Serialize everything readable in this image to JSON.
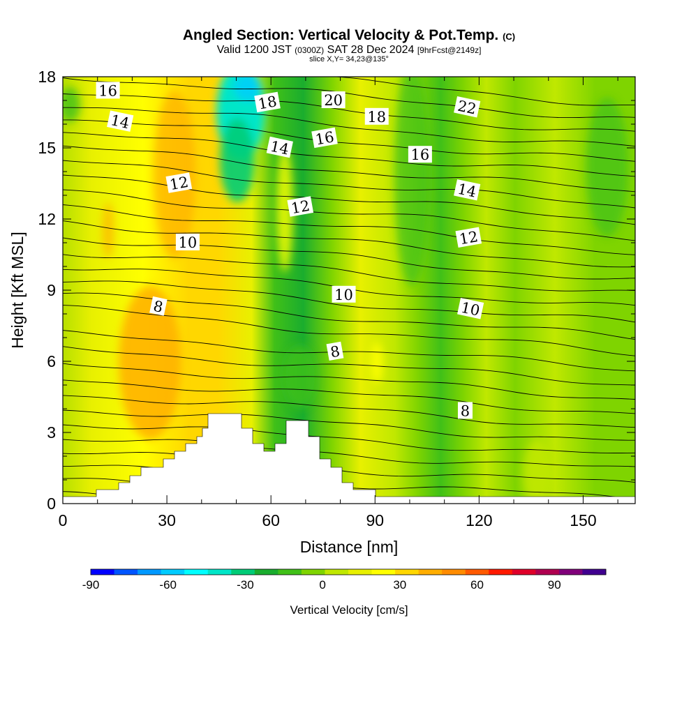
{
  "chart_data": {
    "type": "heatmap",
    "title": "Angled Section: Vertical Velocity & Pot.Temp.",
    "title_mark": "(C)",
    "subtitle_parts": [
      "Valid 1200 JST",
      "(0300Z)",
      "SAT 28 Dec 2024",
      "[9hrFcst@2149z]"
    ],
    "slice_note": "slice X,Y= 34,23@135°",
    "xlabel": "Distance [nm]",
    "ylabel": "Height [Kft MSL]",
    "xlim": [
      0,
      165
    ],
    "ylim": [
      0,
      18
    ],
    "x_ticks": [
      "0",
      "30",
      "60",
      "90",
      "120",
      "150"
    ],
    "y_ticks": [
      "0",
      "3",
      "6",
      "9",
      "12",
      "15",
      "18"
    ],
    "colorbar": {
      "label": "Vertical Velocity [cm/s]",
      "ticks": [
        "-90",
        "-60",
        "-30",
        "0",
        "30",
        "60",
        "90"
      ],
      "range": [
        -90,
        110
      ],
      "step": 10,
      "colors": [
        "#0000ff",
        "#0055ff",
        "#0099ff",
        "#00ccff",
        "#00ffff",
        "#00e6c8",
        "#00cc77",
        "#1aad2e",
        "#40c018",
        "#7fd400",
        "#c0e800",
        "#e8f000",
        "#ffff00",
        "#ffd700",
        "#ffae00",
        "#ff8c00",
        "#ff5a00",
        "#ff1a00",
        "#e0002a",
        "#b00050",
        "#80007a",
        "#400090"
      ]
    },
    "contour_field": "Potential temperature (C)",
    "contour_labels": [
      {
        "text": "16",
        "x": 13,
        "y": 17.4
      },
      {
        "text": "14",
        "x": 16.5,
        "y": 16.1
      },
      {
        "text": "12",
        "x": 33.5,
        "y": 13.5
      },
      {
        "text": "10",
        "x": 36,
        "y": 11.0
      },
      {
        "text": "8",
        "x": 27.5,
        "y": 8.3
      },
      {
        "text": "18",
        "x": 59,
        "y": 16.9
      },
      {
        "text": "20",
        "x": 78,
        "y": 17.0
      },
      {
        "text": "14",
        "x": 62.5,
        "y": 15.0
      },
      {
        "text": "16",
        "x": 75.5,
        "y": 15.4
      },
      {
        "text": "18",
        "x": 90.5,
        "y": 16.3
      },
      {
        "text": "22",
        "x": 116.5,
        "y": 16.7
      },
      {
        "text": "12",
        "x": 68.5,
        "y": 12.5
      },
      {
        "text": "16",
        "x": 103,
        "y": 14.7
      },
      {
        "text": "14",
        "x": 116.5,
        "y": 13.2
      },
      {
        "text": "12",
        "x": 117,
        "y": 11.2
      },
      {
        "text": "10",
        "x": 81,
        "y": 8.8
      },
      {
        "text": "10",
        "x": 117.5,
        "y": 8.2
      },
      {
        "text": "8",
        "x": 78.5,
        "y": 6.4
      },
      {
        "text": "8",
        "x": 116,
        "y": 3.9
      }
    ]
  }
}
